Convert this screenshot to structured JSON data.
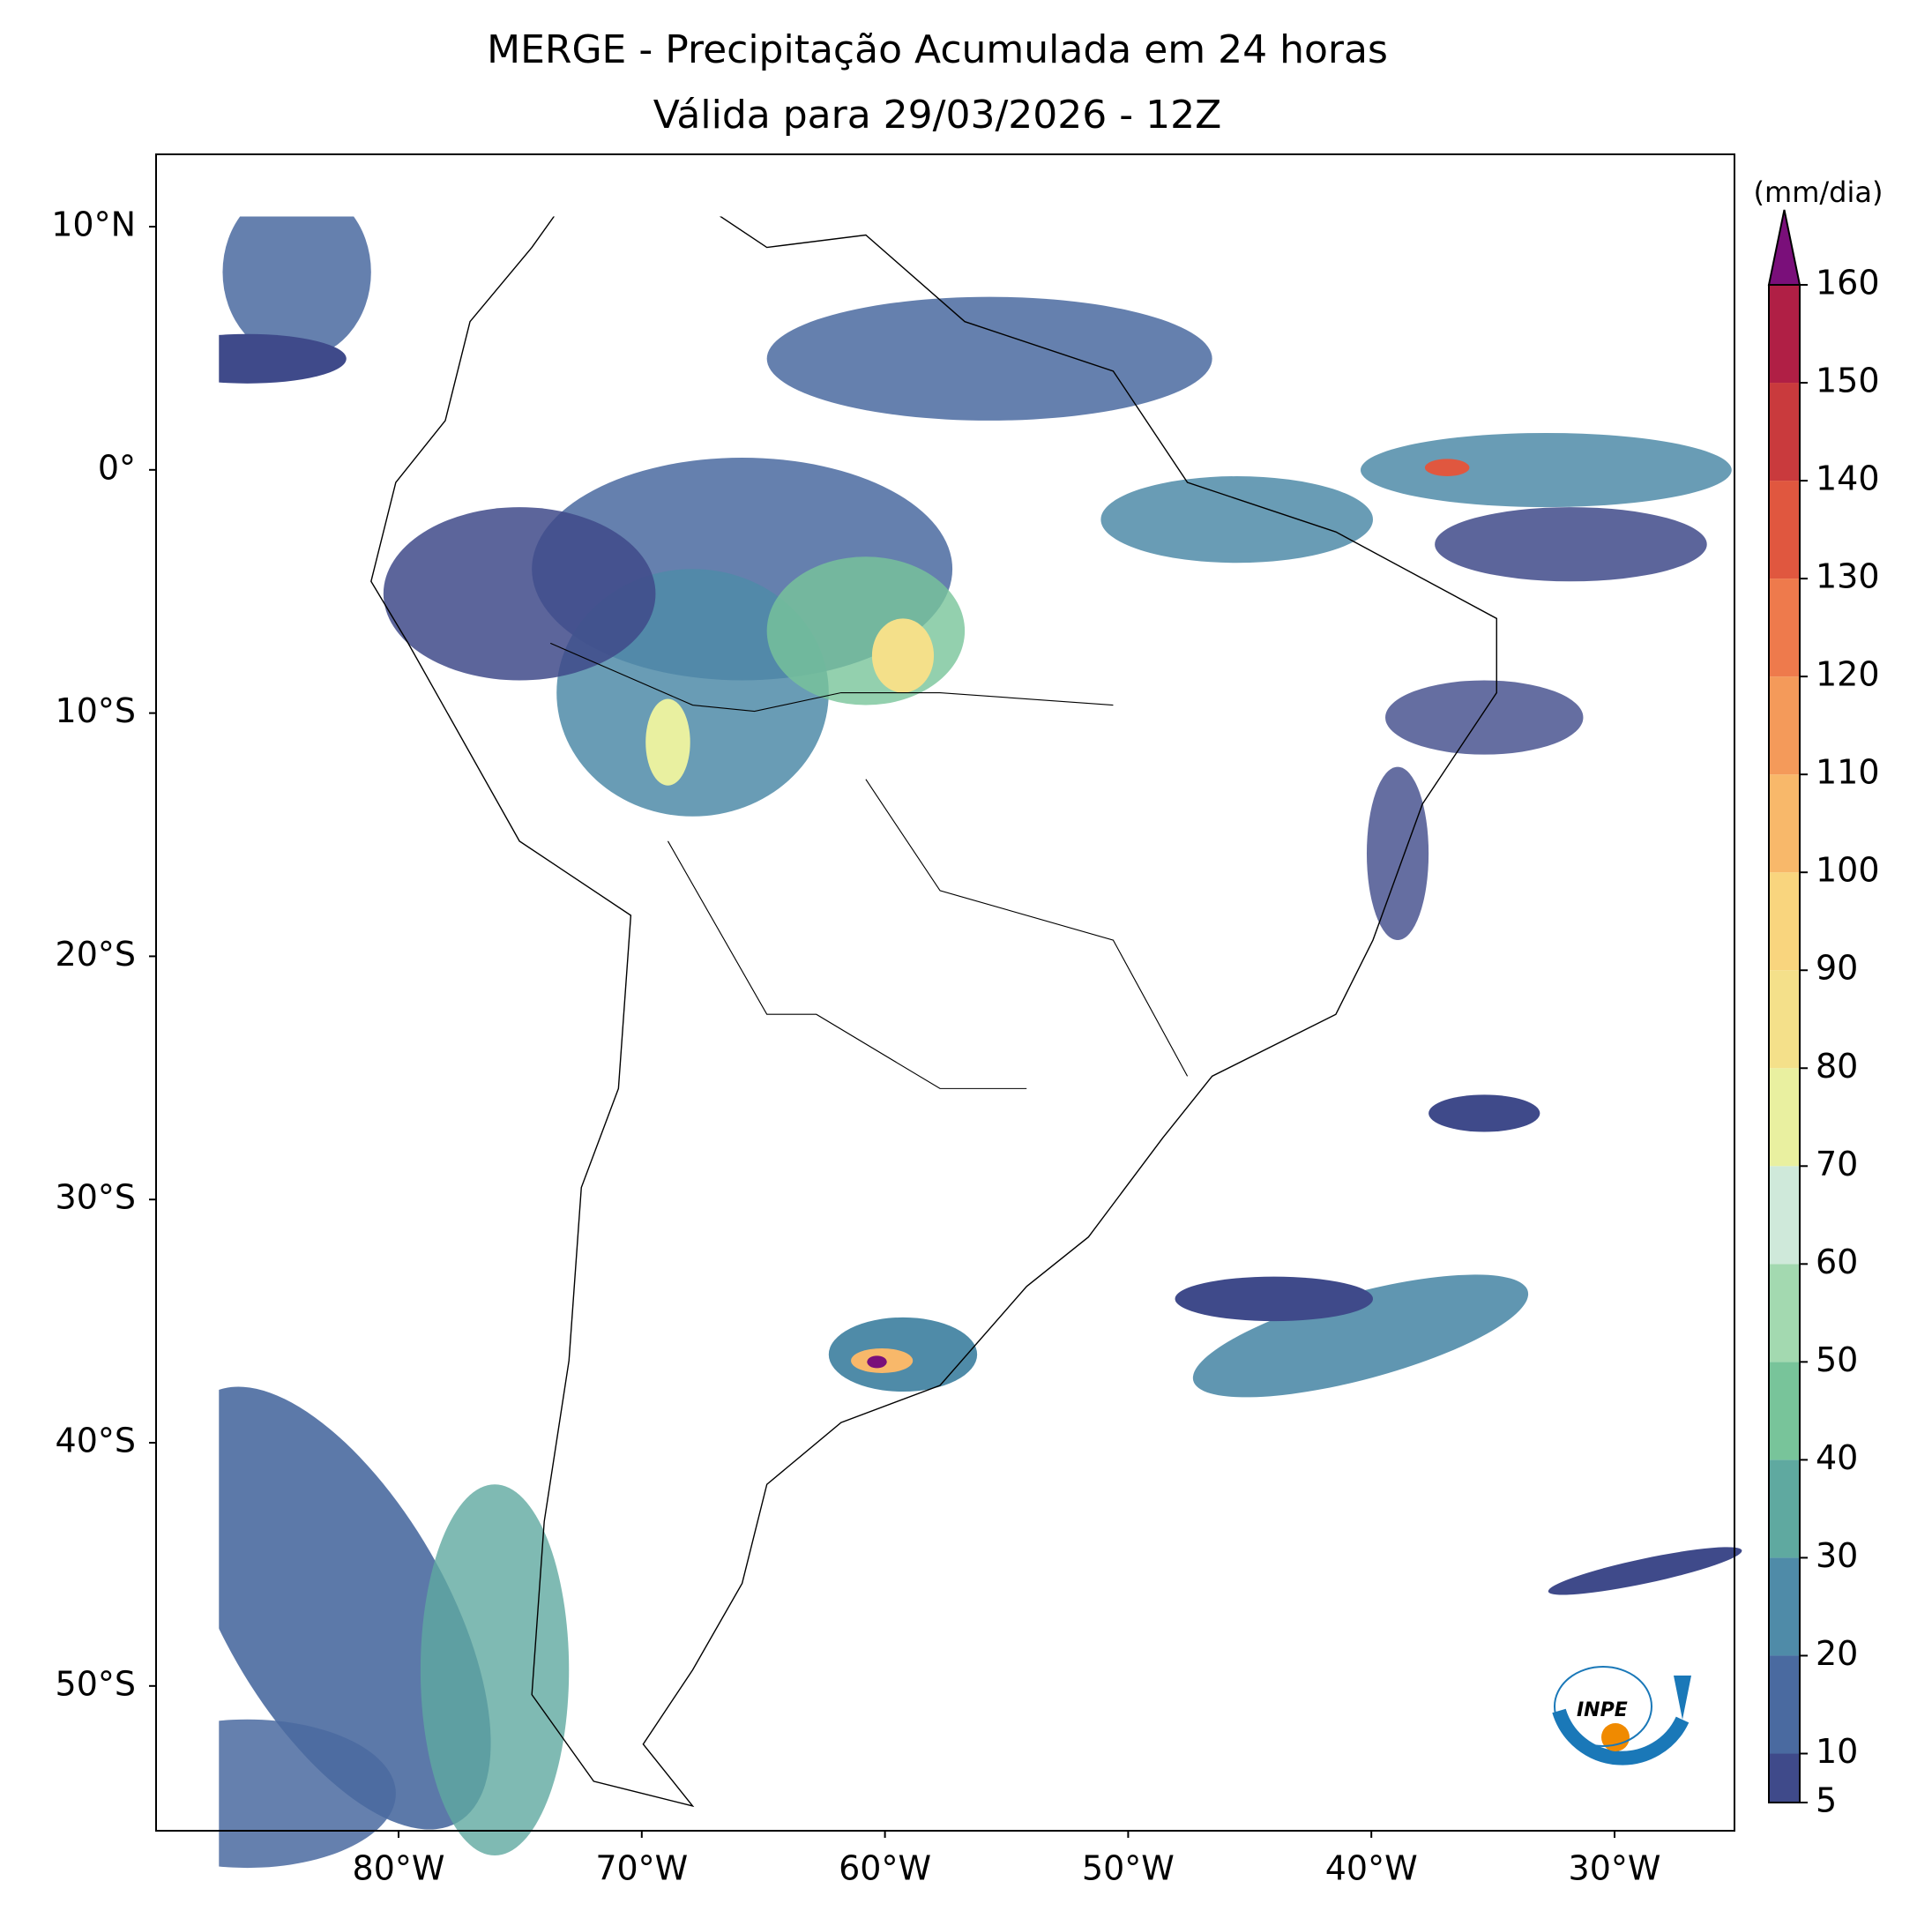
{
  "title": [
    "MERGE - Precipitação Acumulada em 24 horas",
    "Válida para 29/03/2026 - 12Z"
  ],
  "map": {
    "lat_ticks": [
      "10°N",
      "0°",
      "10°S",
      "20°S",
      "30°S",
      "40°S",
      "50°S"
    ],
    "lon_ticks": [
      "80°W",
      "70°W",
      "60°W",
      "50°W",
      "40°W",
      "30°W"
    ]
  },
  "colorbar": {
    "unit": "(mm/dia)",
    "lim": [
      5,
      160
    ],
    "ticks": [
      5,
      10,
      20,
      30,
      40,
      50,
      60,
      70,
      80,
      90,
      100,
      110,
      120,
      130,
      140,
      150,
      160
    ],
    "colors": [
      "#3f4a8a",
      "#4a6aa0",
      "#4f8ba8",
      "#5fa9a0",
      "#78c49a",
      "#a3d9b0",
      "#cfe9da",
      "#e9f0a0",
      "#f4e08a",
      "#f9d57e",
      "#f8b86a",
      "#f49a5a",
      "#ee7a4c",
      "#e0573f",
      "#c93a3d",
      "#b01f45"
    ],
    "extend_color": "#7a0f7a"
  },
  "logo": "INPE"
}
